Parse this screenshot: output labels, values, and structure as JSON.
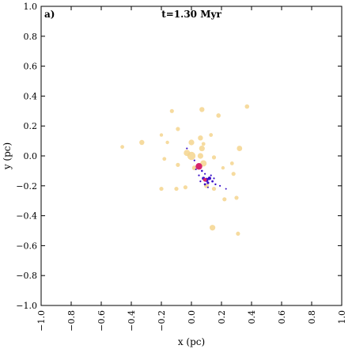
{
  "chart_data": {
    "type": "scatter",
    "title": "t=1.30 Myr",
    "panel_label": "a)",
    "xlabel": "x (pc)",
    "ylabel": "y (pc)",
    "xlim": [
      -1.0,
      1.0
    ],
    "ylim": [
      -1.0,
      1.0
    ],
    "xticks": [
      -1.0,
      -0.8,
      -0.6,
      -0.4,
      -0.2,
      0.0,
      0.2,
      0.4,
      0.6,
      0.8,
      1.0
    ],
    "yticks": [
      -1.0,
      -0.8,
      -0.6,
      -0.4,
      -0.2,
      0.0,
      0.2,
      0.4,
      0.6,
      0.8,
      1.0
    ],
    "xtick_labels": [
      "−1.0",
      "−0.8",
      "−0.6",
      "−0.4",
      "−0.2",
      "0.0",
      "0.2",
      "0.4",
      "0.6",
      "0.8",
      "1.0"
    ],
    "ytick_labels": [
      "−1.0",
      "−0.8",
      "−0.6",
      "−0.4",
      "−0.2",
      "0.0",
      "0.2",
      "0.4",
      "0.6",
      "0.8",
      "1.0"
    ],
    "grid": false,
    "colors": {
      "stars": "#f5d58e",
      "gas": "#3a10c8",
      "core": "#d6246e"
    },
    "series": [
      {
        "id": "stars",
        "points": [
          {
            "x": 0.07,
            "y": 0.31,
            "size": 3.2
          },
          {
            "x": 0.37,
            "y": 0.33,
            "size": 2.8
          },
          {
            "x": -0.13,
            "y": 0.3,
            "size": 2.6
          },
          {
            "x": 0.18,
            "y": 0.27,
            "size": 2.8
          },
          {
            "x": -0.09,
            "y": 0.18,
            "size": 2.6
          },
          {
            "x": -0.2,
            "y": 0.14,
            "size": 2.2
          },
          {
            "x": 0.06,
            "y": 0.12,
            "size": 3.2
          },
          {
            "x": 0.13,
            "y": 0.14,
            "size": 2.4
          },
          {
            "x": -0.33,
            "y": 0.09,
            "size": 3.2
          },
          {
            "x": -0.46,
            "y": 0.06,
            "size": 2.4
          },
          {
            "x": 0.0,
            "y": 0.09,
            "size": 3.6
          },
          {
            "x": 0.08,
            "y": 0.08,
            "size": 2.4
          },
          {
            "x": -0.16,
            "y": 0.09,
            "size": 2.2
          },
          {
            "x": 0.32,
            "y": 0.05,
            "size": 3.4
          },
          {
            "x": 0.07,
            "y": 0.05,
            "size": 3.6
          },
          {
            "x": 0.0,
            "y": 0.0,
            "size": 5.2
          },
          {
            "x": -0.03,
            "y": 0.02,
            "size": 4.0
          },
          {
            "x": 0.06,
            "y": 0.0,
            "size": 3.6
          },
          {
            "x": 0.15,
            "y": -0.01,
            "size": 2.6
          },
          {
            "x": -0.18,
            "y": -0.02,
            "size": 2.4
          },
          {
            "x": 0.27,
            "y": -0.05,
            "size": 2.4
          },
          {
            "x": 0.21,
            "y": -0.08,
            "size": 2.2
          },
          {
            "x": -0.09,
            "y": -0.06,
            "size": 2.6
          },
          {
            "x": 0.28,
            "y": -0.12,
            "size": 2.6
          },
          {
            "x": 0.02,
            "y": -0.08,
            "size": 3.0
          },
          {
            "x": 0.08,
            "y": -0.05,
            "size": 4.0
          },
          {
            "x": 0.1,
            "y": -0.2,
            "size": 3.0
          },
          {
            "x": 0.15,
            "y": -0.22,
            "size": 2.6
          },
          {
            "x": -0.2,
            "y": -0.22,
            "size": 2.6
          },
          {
            "x": -0.1,
            "y": -0.22,
            "size": 2.6
          },
          {
            "x": -0.04,
            "y": -0.21,
            "size": 2.6
          },
          {
            "x": 0.22,
            "y": -0.29,
            "size": 2.6
          },
          {
            "x": 0.3,
            "y": -0.28,
            "size": 2.6
          },
          {
            "x": 0.14,
            "y": -0.48,
            "size": 3.6
          },
          {
            "x": 0.31,
            "y": -0.52,
            "size": 2.6
          }
        ]
      },
      {
        "id": "gas",
        "points": [
          {
            "x": -0.03,
            "y": 0.05,
            "size": 1.1
          },
          {
            "x": 0.02,
            "y": -0.03,
            "size": 1.1
          },
          {
            "x": 0.04,
            "y": -0.06,
            "size": 1.1
          },
          {
            "x": 0.07,
            "y": -0.1,
            "size": 1.3
          },
          {
            "x": 0.09,
            "y": -0.12,
            "size": 1.1
          },
          {
            "x": 0.05,
            "y": -0.13,
            "size": 1.1
          },
          {
            "x": 0.08,
            "y": -0.15,
            "size": 2.0
          },
          {
            "x": 0.1,
            "y": -0.16,
            "size": 2.6
          },
          {
            "x": 0.12,
            "y": -0.15,
            "size": 2.2
          },
          {
            "x": 0.11,
            "y": -0.18,
            "size": 1.6
          },
          {
            "x": 0.14,
            "y": -0.17,
            "size": 1.4
          },
          {
            "x": 0.16,
            "y": -0.19,
            "size": 1.2
          },
          {
            "x": 0.06,
            "y": -0.17,
            "size": 1.1
          },
          {
            "x": 0.13,
            "y": -0.13,
            "size": 1.1
          },
          {
            "x": 0.09,
            "y": -0.19,
            "size": 1.4
          },
          {
            "x": 0.15,
            "y": -0.15,
            "size": 1.1
          },
          {
            "x": 0.19,
            "y": -0.2,
            "size": 1.1
          },
          {
            "x": 0.23,
            "y": -0.22,
            "size": 1.0
          },
          {
            "x": 0.03,
            "y": -0.09,
            "size": 1.0
          },
          {
            "x": 0.11,
            "y": -0.21,
            "size": 1.0
          }
        ]
      },
      {
        "id": "core",
        "points": [
          {
            "x": 0.05,
            "y": -0.07,
            "size": 4.2
          },
          {
            "x": 0.09,
            "y": -0.16,
            "size": 2.4
          }
        ]
      }
    ]
  }
}
